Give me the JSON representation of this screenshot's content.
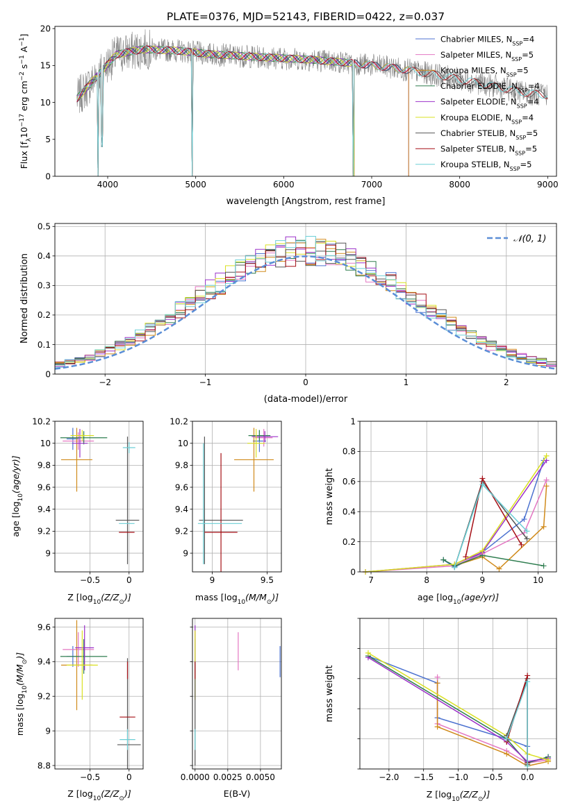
{
  "figure_title": "PLATE=0376, MJD=52143, FIBERID=0422, z=0.037",
  "colors": {
    "Chabrier MILES": "#4c72d0",
    "Salpeter MILES": "#e377c2",
    "Kroupa MILES": "#d08a1a",
    "Chabrier ELODIE": "#2e7d4f",
    "Salpeter ELODIE": "#9b30c9",
    "Kroupa ELODIE": "#d9e021",
    "Chabrier STELIB": "#555555",
    "Salpeter STELIB": "#a50f15",
    "Kroupa STELIB": "#6ccfd6",
    "data": "#808080",
    "normal": "#5b8ed6"
  },
  "chart_data": [
    {
      "id": "spectrum",
      "type": "line",
      "xlabel": "wavelength [Angstrom, rest frame]",
      "ylabel_parts": [
        "Flux [f",
        "λ",
        "10",
        "−17",
        " erg cm",
        "−2",
        " s",
        "−1",
        " A",
        "−1",
        "]"
      ],
      "xlim": [
        3400,
        9100
      ],
      "ylim": [
        0,
        20.3
      ],
      "xticks": [
        4000,
        5000,
        6000,
        7000,
        8000,
        9000
      ],
      "yticks": [
        0,
        5,
        10,
        15,
        20
      ],
      "grid": false,
      "legend_position": "top-right",
      "legend": [
        {
          "name": "Chabrier MILES",
          "n": "4"
        },
        {
          "name": "Salpeter MILES",
          "n": "5"
        },
        {
          "name": "Kroupa MILES",
          "n": "5"
        },
        {
          "name": "Chabrier ELODIE",
          "n": "4"
        },
        {
          "name": "Salpeter ELODIE",
          "n": "4"
        },
        {
          "name": "Kroupa ELODIE",
          "n": "4"
        },
        {
          "name": "Chabrier STELIB",
          "n": "5"
        },
        {
          "name": "Salpeter STELIB",
          "n": "5"
        },
        {
          "name": "Kroupa STELIB",
          "n": "5"
        }
      ],
      "continuum": [
        [
          3650,
          10.5
        ],
        [
          3800,
          12.5
        ],
        [
          3950,
          14.5
        ],
        [
          4100,
          16.5
        ],
        [
          4400,
          17.2
        ],
        [
          4800,
          17.0
        ],
        [
          5200,
          16.5
        ],
        [
          5800,
          16.1
        ],
        [
          6300,
          15.8
        ],
        [
          6800,
          15.3
        ],
        [
          7300,
          14.6
        ],
        [
          7800,
          13.6
        ],
        [
          8300,
          12.4
        ],
        [
          8800,
          11.2
        ],
        [
          9000,
          11.0
        ]
      ],
      "model_end": [
        {
          "name": "Chabrier MILES",
          "x": 7420
        },
        {
          "name": "Salpeter MILES",
          "x": 7420
        },
        {
          "name": "Kroupa MILES",
          "x": 7420
        },
        {
          "name": "Chabrier ELODIE",
          "x": 6800
        },
        {
          "name": "Salpeter ELODIE",
          "x": 6800
        },
        {
          "name": "Kroupa ELODIE",
          "x": 6800
        },
        {
          "name": "Chabrier STELIB",
          "x": 9000
        },
        {
          "name": "Salpeter STELIB",
          "x": 9000
        },
        {
          "name": "Kroupa STELIB",
          "x": 9000
        }
      ],
      "dips": [
        [
          3890,
          0
        ],
        [
          3935,
          4
        ],
        [
          4960,
          0
        ],
        [
          6790,
          0
        ]
      ]
    },
    {
      "id": "residuals",
      "type": "histogram",
      "xlabel": "(data-model)/error",
      "ylabel": "Normed distribution",
      "xlim": [
        -2.5,
        2.5
      ],
      "ylim": [
        0,
        0.51
      ],
      "xticks": [
        -2,
        -1,
        0,
        1,
        2
      ],
      "yticks": [
        0,
        0.1,
        0.2,
        0.3,
        0.4,
        0.5
      ],
      "grid": true,
      "legend_position": "top-right",
      "legend_label": "𝒩(0, 1)",
      "bin_width": 0.1,
      "bin_start": -2.5
    },
    {
      "id": "age_vs_Z",
      "type": "errorbar",
      "xlabel_parts": [
        "Z [log",
        "10",
        "(Z/Z",
        "⊙",
        ")]"
      ],
      "ylabel_parts": [
        "age  [log",
        "10",
        "(age/yr)]"
      ],
      "xlim": [
        -0.95,
        0.18
      ],
      "ylim": [
        8.83,
        10.2
      ],
      "xticks": [
        -0.5,
        0.0
      ],
      "yticks": [
        9.0,
        9.2,
        9.4,
        9.6,
        9.8,
        10.0,
        10.2
      ],
      "grid": true,
      "points": [
        {
          "name": "Chabrier MILES",
          "x": -0.72,
          "xerr": 0.08,
          "y": 10.04,
          "yerr": 0.1
        },
        {
          "name": "Salpeter MILES",
          "x": -0.65,
          "xerr": 0.2,
          "y": 10.02,
          "yerr": 0.08
        },
        {
          "name": "Kroupa MILES",
          "x": -0.67,
          "xerr": 0.2,
          "y": 9.85,
          "yerr": 0.29
        },
        {
          "name": "Chabrier ELODIE",
          "x": -0.58,
          "xerr": 0.3,
          "y": 10.05,
          "yerr": 0.06
        },
        {
          "name": "Salpeter ELODIE",
          "x": -0.63,
          "xerr": 0.1,
          "y": 10.0,
          "yerr": 0.13
        },
        {
          "name": "Kroupa ELODIE",
          "x": -0.6,
          "xerr": 0.15,
          "y": 10.07,
          "yerr": 0.05
        },
        {
          "name": "Chabrier STELIB",
          "x": -0.02,
          "xerr": 0.15,
          "y": 9.3,
          "yerr": 0.0
        },
        {
          "name": "Chabrier STELIB",
          "x": -0.02,
          "xerr": 0.0,
          "y": 9.48,
          "yerr": 0.58
        },
        {
          "name": "Salpeter STELIB",
          "x": -0.03,
          "xerr": 0.1,
          "y": 9.19,
          "yerr": 0.0
        },
        {
          "name": "Kroupa STELIB",
          "x": 0.0,
          "xerr": 0.08,
          "y": 9.96,
          "yerr": 0.05
        },
        {
          "name": "Kroupa STELIB",
          "x": -0.03,
          "xerr": 0.1,
          "y": 9.27,
          "yerr": 0.0
        }
      ]
    },
    {
      "id": "age_vs_mass",
      "type": "errorbar",
      "xlabel_parts": [
        "mass [log",
        "10",
        "(M/M",
        "⊙",
        ")]"
      ],
      "xlim": [
        8.82,
        9.63
      ],
      "ylim": [
        8.83,
        10.2
      ],
      "xticks": [
        9.0,
        9.5
      ],
      "yticks": [
        9.0,
        9.2,
        9.4,
        9.6,
        9.8,
        10.0,
        10.2
      ],
      "grid": true,
      "points": [
        {
          "name": "Chabrier MILES",
          "x": 9.43,
          "xerr": 0.06,
          "y": 10.02,
          "yerr": 0.1
        },
        {
          "name": "Salpeter MILES",
          "x": 9.47,
          "xerr": 0.08,
          "y": 10.05,
          "yerr": 0.08
        },
        {
          "name": "Kroupa MILES",
          "x": 9.38,
          "xerr": 0.18,
          "y": 9.85,
          "yerr": 0.29
        },
        {
          "name": "Chabrier ELODIE",
          "x": 9.43,
          "xerr": 0.1,
          "y": 10.07,
          "yerr": 0.05
        },
        {
          "name": "Salpeter ELODIE",
          "x": 9.48,
          "xerr": 0.12,
          "y": 10.06,
          "yerr": 0.05
        },
        {
          "name": "Kroupa ELODIE",
          "x": 9.4,
          "xerr": 0.08,
          "y": 10.0,
          "yerr": 0.13
        },
        {
          "name": "Chabrier STELIB",
          "x": 8.93,
          "xerr": 0.0,
          "y": 9.48,
          "yerr": 0.58
        },
        {
          "name": "Chabrier STELIB",
          "x": 9.08,
          "xerr": 0.2,
          "y": 9.3,
          "yerr": 0.0
        },
        {
          "name": "Salpeter STELIB",
          "x": 9.08,
          "xerr": 0.15,
          "y": 9.19,
          "yerr": 0.72
        },
        {
          "name": "Kroupa STELIB",
          "x": 8.92,
          "xerr": 0.0,
          "y": 9.45,
          "yerr": 0.55
        },
        {
          "name": "Kroupa STELIB",
          "x": 9.07,
          "xerr": 0.2,
          "y": 9.27,
          "yerr": 0.0
        }
      ]
    },
    {
      "id": "weight_vs_age",
      "type": "line",
      "xlabel_parts": [
        "age  [log",
        "10",
        "(age/yr)]"
      ],
      "ylabel": "mass weight",
      "xlim": [
        6.8,
        10.33
      ],
      "ylim": [
        0,
        1.0
      ],
      "xticks": [
        7,
        8,
        9,
        10
      ],
      "yticks": [
        0.0,
        0.2,
        0.4,
        0.6,
        0.8,
        1.0
      ],
      "grid": true,
      "series": [
        {
          "name": "Chabrier MILES",
          "x": [
            8.3,
            8.5,
            9.0,
            9.75,
            10.1
          ],
          "y": [
            0.08,
            0.03,
            0.13,
            0.35,
            0.74
          ]
        },
        {
          "name": "Salpeter MILES",
          "x": [
            6.9,
            8.5,
            9.0,
            9.75,
            10.15
          ],
          "y": [
            0.0,
            0.04,
            0.12,
            0.26,
            0.61
          ]
        },
        {
          "name": "Kroupa MILES",
          "x": [
            8.5,
            9.0,
            9.3,
            10.1,
            10.15
          ],
          "y": [
            0.04,
            0.1,
            0.02,
            0.3,
            0.57
          ]
        },
        {
          "name": "Chabrier ELODIE",
          "x": [
            8.3,
            8.5,
            9.0,
            10.1
          ],
          "y": [
            0.08,
            0.04,
            0.11,
            0.04
          ]
        },
        {
          "name": "Salpeter ELODIE",
          "x": [
            6.9,
            8.5,
            9.0,
            10.15
          ],
          "y": [
            0.0,
            0.05,
            0.13,
            0.74
          ]
        },
        {
          "name": "Kroupa ELODIE",
          "x": [
            6.9,
            8.5,
            9.0,
            10.15
          ],
          "y": [
            0.0,
            0.05,
            0.14,
            0.77
          ]
        },
        {
          "name": "Chabrier STELIB",
          "x": [
            8.5,
            9.0,
            9.8
          ],
          "y": [
            0.03,
            0.6,
            0.22
          ]
        },
        {
          "name": "Salpeter STELIB",
          "x": [
            8.7,
            9.0,
            9.7
          ],
          "y": [
            0.1,
            0.62,
            0.18
          ]
        },
        {
          "name": "Kroupa STELIB",
          "x": [
            8.5,
            9.0,
            9.8
          ],
          "y": [
            0.03,
            0.58,
            0.27
          ]
        }
      ]
    },
    {
      "id": "mass_vs_Z",
      "type": "errorbar",
      "xlabel_parts": [
        "Z [log",
        "10",
        "(Z/Z",
        "⊙",
        ")]"
      ],
      "ylabel_parts": [
        "mass [log",
        "10",
        "(M/M",
        "⊙",
        ")]"
      ],
      "xlim": [
        -0.95,
        0.18
      ],
      "ylim": [
        8.78,
        9.65
      ],
      "xticks": [
        -0.5,
        0.0
      ],
      "yticks": [
        8.8,
        9.0,
        9.2,
        9.4,
        9.6
      ],
      "grid": true,
      "points": [
        {
          "name": "Chabrier MILES",
          "x": -0.72,
          "xerr": 0.08,
          "y": 9.43,
          "yerr": 0.06
        },
        {
          "name": "Salpeter MILES",
          "x": -0.65,
          "xerr": 0.2,
          "y": 9.47,
          "yerr": 0.1
        },
        {
          "name": "Kroupa MILES",
          "x": -0.67,
          "xerr": 0.2,
          "y": 9.38,
          "yerr": 0.26
        },
        {
          "name": "Chabrier ELODIE",
          "x": -0.58,
          "xerr": 0.3,
          "y": 9.43,
          "yerr": 0.1
        },
        {
          "name": "Salpeter ELODIE",
          "x": -0.57,
          "xerr": 0.12,
          "y": 9.48,
          "yerr": 0.13
        },
        {
          "name": "Kroupa ELODIE",
          "x": -0.6,
          "xerr": 0.2,
          "y": 9.38,
          "yerr": 0.2
        },
        {
          "name": "Chabrier STELIB",
          "x": -0.02,
          "xerr": 0.0,
          "y": 9.1,
          "yerr": 0.32
        },
        {
          "name": "Chabrier STELIB",
          "x": 0.0,
          "xerr": 0.15,
          "y": 8.92,
          "yerr": 0.0
        },
        {
          "name": "Salpeter STELIB",
          "x": -0.02,
          "xerr": 0.1,
          "y": 9.08,
          "yerr": 0.0
        },
        {
          "name": "Salpeter STELIB",
          "x": -0.02,
          "xerr": 0.0,
          "y": 9.35,
          "yerr": 0.05
        },
        {
          "name": "Kroupa STELIB",
          "x": -0.02,
          "xerr": 0.1,
          "y": 8.95,
          "yerr": 0.06
        }
      ]
    },
    {
      "id": "mass_vs_EBV",
      "type": "errorbar",
      "xlabel": "E(B-V)",
      "xlim": [
        -0.0002,
        0.0066
      ],
      "ylim": [
        8.78,
        9.65
      ],
      "xticks": [
        0.0,
        0.0025,
        0.005
      ],
      "xtick_labels": [
        "0.0000",
        "0.0025",
        "0.0050"
      ],
      "yticks": [
        8.8,
        9.0,
        9.2,
        9.4,
        9.6
      ],
      "grid": true,
      "points": [
        {
          "name": "Chabrier MILES",
          "x": 0.0065,
          "xerr": 0.0,
          "y": 9.4,
          "yerr": 0.09
        },
        {
          "name": "Salpeter MILES",
          "x": 0.0033,
          "xerr": 0.0,
          "y": 9.46,
          "yerr": 0.11
        },
        {
          "name": "Kroupa MILES",
          "x": 0.0,
          "xerr": 0.0,
          "y": 9.38,
          "yerr": 0.2
        },
        {
          "name": "Chabrier ELODIE",
          "x": 0.0,
          "xerr": 0.0,
          "y": 9.43,
          "yerr": 0.1
        },
        {
          "name": "Salpeter ELODIE",
          "x": 0.0,
          "xerr": 0.0,
          "y": 9.48,
          "yerr": 0.13
        },
        {
          "name": "Kroupa ELODIE",
          "x": 0.0,
          "xerr": 0.0,
          "y": 9.38,
          "yerr": 0.2
        },
        {
          "name": "Chabrier STELIB",
          "x": 0.0,
          "xerr": 0.0,
          "y": 9.1,
          "yerr": 0.3
        },
        {
          "name": "Salpeter STELIB",
          "x": 0.0,
          "xerr": 0.0,
          "y": 9.35,
          "yerr": 0.05
        },
        {
          "name": "Kroupa STELIB",
          "x": 0.0,
          "xerr": 0.0,
          "y": 8.95,
          "yerr": 0.06
        }
      ]
    },
    {
      "id": "weight_vs_Z",
      "type": "line",
      "xlabel_parts": [
        "Z [log",
        "10",
        "(Z/Z",
        "⊙",
        ")]"
      ],
      "ylabel": "mass weight",
      "xlim": [
        -2.42,
        0.42
      ],
      "ylim": [
        0,
        1.0
      ],
      "xticks": [
        -2.0,
        -1.5,
        -1.0,
        -0.5,
        0.0
      ],
      "xtick_labels": [
        "−2.0",
        "−1.5",
        "−1.0",
        "−0.5",
        "0.0"
      ],
      "yticks": [
        0.0,
        0.2,
        0.4,
        0.6,
        0.8,
        1.0
      ],
      "grid": true,
      "series": [
        {
          "name": "Chabrier MILES",
          "x": [
            -2.3,
            -1.3,
            -1.3,
            -0.3,
            0.0,
            0.0,
            0.3
          ],
          "y": [
            0.75,
            0.57,
            0.34,
            0.2,
            0.15,
            0.04,
            0.08
          ]
        },
        {
          "name": "Salpeter MILES",
          "x": [
            -1.3,
            -1.3,
            -0.3,
            0.0,
            0.3
          ],
          "y": [
            0.61,
            0.3,
            0.12,
            0.04,
            0.06
          ]
        },
        {
          "name": "Kroupa MILES",
          "x": [
            -1.3,
            -1.3,
            -0.3,
            0.0,
            0.3
          ],
          "y": [
            0.57,
            0.28,
            0.1,
            0.02,
            0.05
          ]
        },
        {
          "name": "Chabrier ELODIE",
          "x": [
            -2.3,
            -0.3,
            0.0,
            0.3
          ],
          "y": [
            0.75,
            0.2,
            0.04,
            0.08
          ]
        },
        {
          "name": "Salpeter ELODIE",
          "x": [
            -2.3,
            -0.3,
            0.0,
            0.3
          ],
          "y": [
            0.74,
            0.18,
            0.05,
            0.07
          ]
        },
        {
          "name": "Kroupa ELODIE",
          "x": [
            -2.3,
            -0.3,
            0.0,
            0.3
          ],
          "y": [
            0.77,
            0.22,
            0.1,
            0.06
          ]
        },
        {
          "name": "Chabrier STELIB",
          "x": [
            -0.3,
            0.0,
            0.0
          ],
          "y": [
            0.22,
            0.6,
            0.03
          ]
        },
        {
          "name": "Salpeter STELIB",
          "x": [
            -0.3,
            0.0,
            0.0
          ],
          "y": [
            0.18,
            0.62,
            0.04
          ]
        },
        {
          "name": "Kroupa STELIB",
          "x": [
            -0.3,
            0.0,
            0.0
          ],
          "y": [
            0.2,
            0.58,
            0.02
          ]
        }
      ]
    }
  ]
}
